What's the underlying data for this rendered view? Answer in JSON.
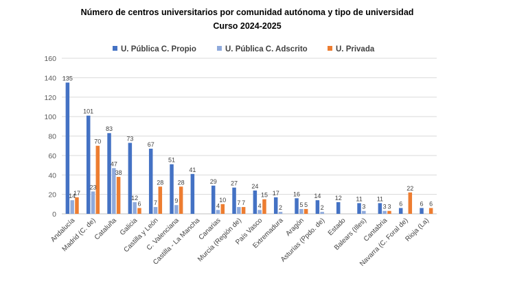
{
  "chart_data": {
    "type": "bar",
    "title": "Número de centros universitarios por comunidad autónoma y tipo de universidad",
    "subtitle": "Curso 2024-2025",
    "xlabel": "",
    "ylabel": "",
    "ylim": [
      0,
      160
    ],
    "yticks": [
      0,
      20,
      40,
      60,
      80,
      100,
      120,
      140,
      160
    ],
    "grid": true,
    "legend_position": "top",
    "categories": [
      "Andalucía",
      "Madrid (C. de)",
      "Cataluña",
      "Galicia",
      "Castilla y León",
      "C. Valenciana",
      "Castilla - La Mancha",
      "Canarias",
      "Murcia (Región de)",
      "País Vasco",
      "Extremadura",
      "Aragón",
      "Asturias (Ppdo. de)",
      "Estado",
      "Balears (Illes)",
      "Cantabria",
      "Navarra (C. Foral de)",
      "Rioja (La)"
    ],
    "series": [
      {
        "name": "U. Pública C. Propio",
        "color": "#4472c4",
        "values": [
          135,
          101,
          83,
          73,
          67,
          51,
          41,
          29,
          27,
          24,
          17,
          16,
          14,
          12,
          11,
          11,
          6,
          6
        ]
      },
      {
        "name": "U. Pública C. Adscrito",
        "color": "#8faadc",
        "values": [
          14,
          23,
          47,
          12,
          7,
          9,
          null,
          4,
          7,
          4,
          2,
          5,
          2,
          null,
          3,
          3,
          null,
          null
        ]
      },
      {
        "name": "U. Privada",
        "color": "#ed7d31",
        "values": [
          17,
          70,
          38,
          6,
          28,
          28,
          null,
          10,
          7,
          15,
          null,
          5,
          null,
          null,
          null,
          3,
          22,
          6
        ]
      }
    ]
  }
}
